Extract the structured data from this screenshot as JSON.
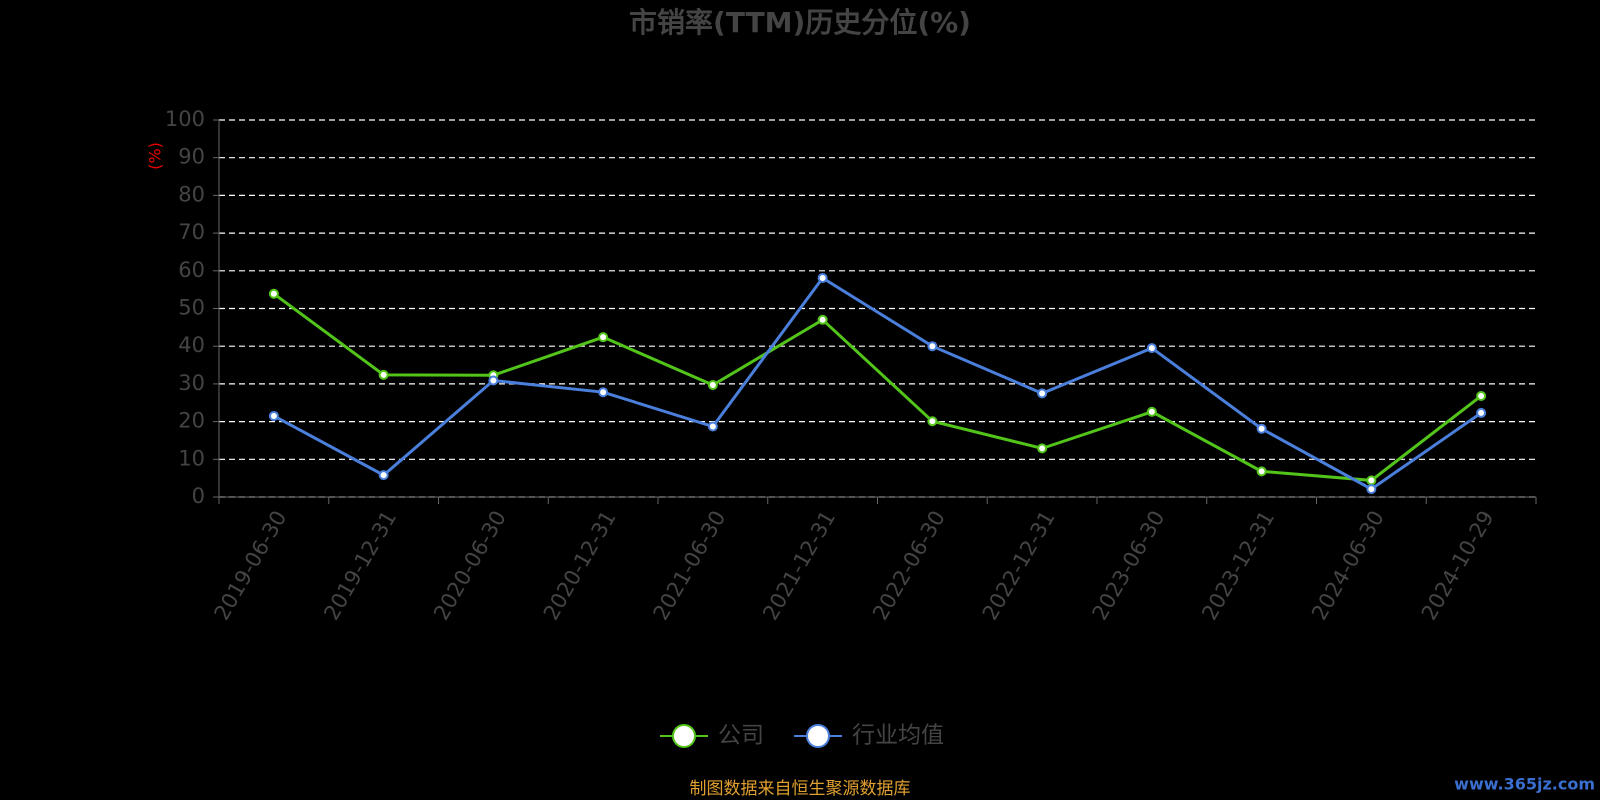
{
  "chart_data": {
    "type": "line",
    "title": "市销率(TTM)历史分位(%)",
    "y_label": "(%)",
    "categories": [
      "2019-06-30",
      "2019-12-31",
      "2020-06-30",
      "2020-12-31",
      "2021-06-30",
      "2021-12-31",
      "2022-06-30",
      "2022-12-31",
      "2023-06-30",
      "2023-12-31",
      "2024-06-30",
      "2024-10-29"
    ],
    "series": [
      {
        "name": "公司",
        "color": "#52c41a",
        "values": [
          53.9,
          32.4,
          32.3,
          42.4,
          29.7,
          47.0,
          20.1,
          12.9,
          22.6,
          6.8,
          4.4,
          26.8
        ]
      },
      {
        "name": "行业均值",
        "color": "#4a7fdb",
        "values": [
          21.5,
          5.8,
          30.9,
          27.8,
          18.7,
          58.1,
          40.0,
          27.5,
          39.5,
          18.1,
          2.1,
          22.3
        ]
      }
    ],
    "ylim": [
      0,
      100
    ],
    "yticks": [
      0,
      10,
      20,
      30,
      40,
      50,
      60,
      70,
      80,
      90,
      100
    ],
    "grid": true,
    "footer": "制图数据来自恒生聚源数据库",
    "watermark": "www.365jz.com"
  }
}
